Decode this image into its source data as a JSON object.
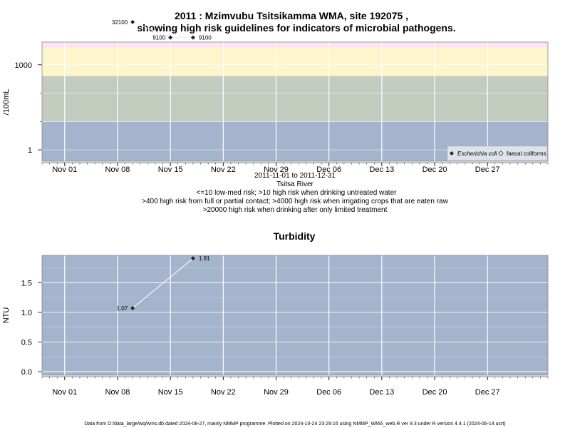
{
  "title_line1": "2011 : Mzimvubu Tsitsikamma WMA, site 192075 ,",
  "title_line2": "showing high risk guidelines for indicators of microbial pathogens.",
  "chart_data": [
    {
      "type": "scatter",
      "ylabel": "/100mL",
      "yscale": "log",
      "y_tick_labels": [
        "1",
        "1000"
      ],
      "y_tick_values": [
        1,
        1000
      ],
      "x_tick_labels": [
        "Nov 01",
        "Nov 08",
        "Nov 15",
        "Nov 22",
        "Nov 29",
        "Dec 06",
        "Dec 13",
        "Dec 20",
        "Dec 27"
      ],
      "x_tick_dates": [
        "2011-11-01",
        "2011-11-08",
        "2011-11-15",
        "2011-11-22",
        "2011-11-29",
        "2011-12-06",
        "2011-12-13",
        "2011-12-20",
        "2011-12-27"
      ],
      "xlim": [
        "2011-10-29",
        "2012-01-04"
      ],
      "ylim_log10": [
        -0.4,
        3.8
      ],
      "risk_bands": [
        {
          "max": 10,
          "color": "#a3b4cc"
        },
        {
          "max": 400,
          "color": "#c3cbbf"
        },
        {
          "max": 4000,
          "color": "#fdf5cc"
        },
        {
          "max": 20000,
          "color": "#fde3f3"
        },
        {
          "max": null,
          "color": "#f9b7c2"
        }
      ],
      "series": [
        {
          "name": "Escherichia coli",
          "marker": "filled-diamond",
          "points": [
            {
              "x": "2011-11-10",
              "y": 32100,
              "label": "32100"
            },
            {
              "x": "2011-11-15",
              "y": 9100,
              "label": "9100"
            },
            {
              "x": "2011-11-18",
              "y": 9100,
              "label": "9100"
            }
          ]
        },
        {
          "name": "faecal coliforms",
          "marker": "open-diamond",
          "points": []
        }
      ],
      "legend_position": "bottom-right",
      "xlabel_lines": [
        "2011-11-01 to 2011-12-31",
        "Tsitsa River",
        "<=10 low-med risk; >10 high risk when drinking untreated water",
        ">400 high risk from full or partial contact; >4000 high risk when irrigating crops that are eaten raw",
        ">20000 high risk when drinking after only limited treatment"
      ]
    },
    {
      "type": "line",
      "title": "Turbidity",
      "ylabel": "NTU",
      "y_tick_labels": [
        "0.0",
        "0.5",
        "1.0",
        "1.5"
      ],
      "y_tick_values": [
        0,
        0.5,
        1.0,
        1.5
      ],
      "ylim": [
        -0.06,
        1.96
      ],
      "x_tick_labels": [
        "Nov 01",
        "Nov 08",
        "Nov 15",
        "Nov 22",
        "Nov 29",
        "Dec 06",
        "Dec 13",
        "Dec 20",
        "Dec 27"
      ],
      "x_tick_dates": [
        "2011-11-01",
        "2011-11-08",
        "2011-11-15",
        "2011-11-22",
        "2011-11-29",
        "2011-12-06",
        "2011-12-13",
        "2011-12-20",
        "2011-12-27"
      ],
      "xlim": [
        "2011-10-29",
        "2012-01-04"
      ],
      "background": "#a3b4cc",
      "series": [
        {
          "points": [
            {
              "x": "2011-11-10",
              "y": 1.07,
              "label": "1.07"
            },
            {
              "x": "2011-11-18",
              "y": 1.91,
              "label": "1.91"
            }
          ]
        }
      ]
    }
  ],
  "footer": "Data from D:/data_large/wq/wms.db dated 2024-08-27, mainly NMMP programme. Plotted on 2024-10-24 23:29:16 using NMMP_WMA_web.R ver 9.3 under R version 4.4.1 (2024-06-14 ucrt)"
}
